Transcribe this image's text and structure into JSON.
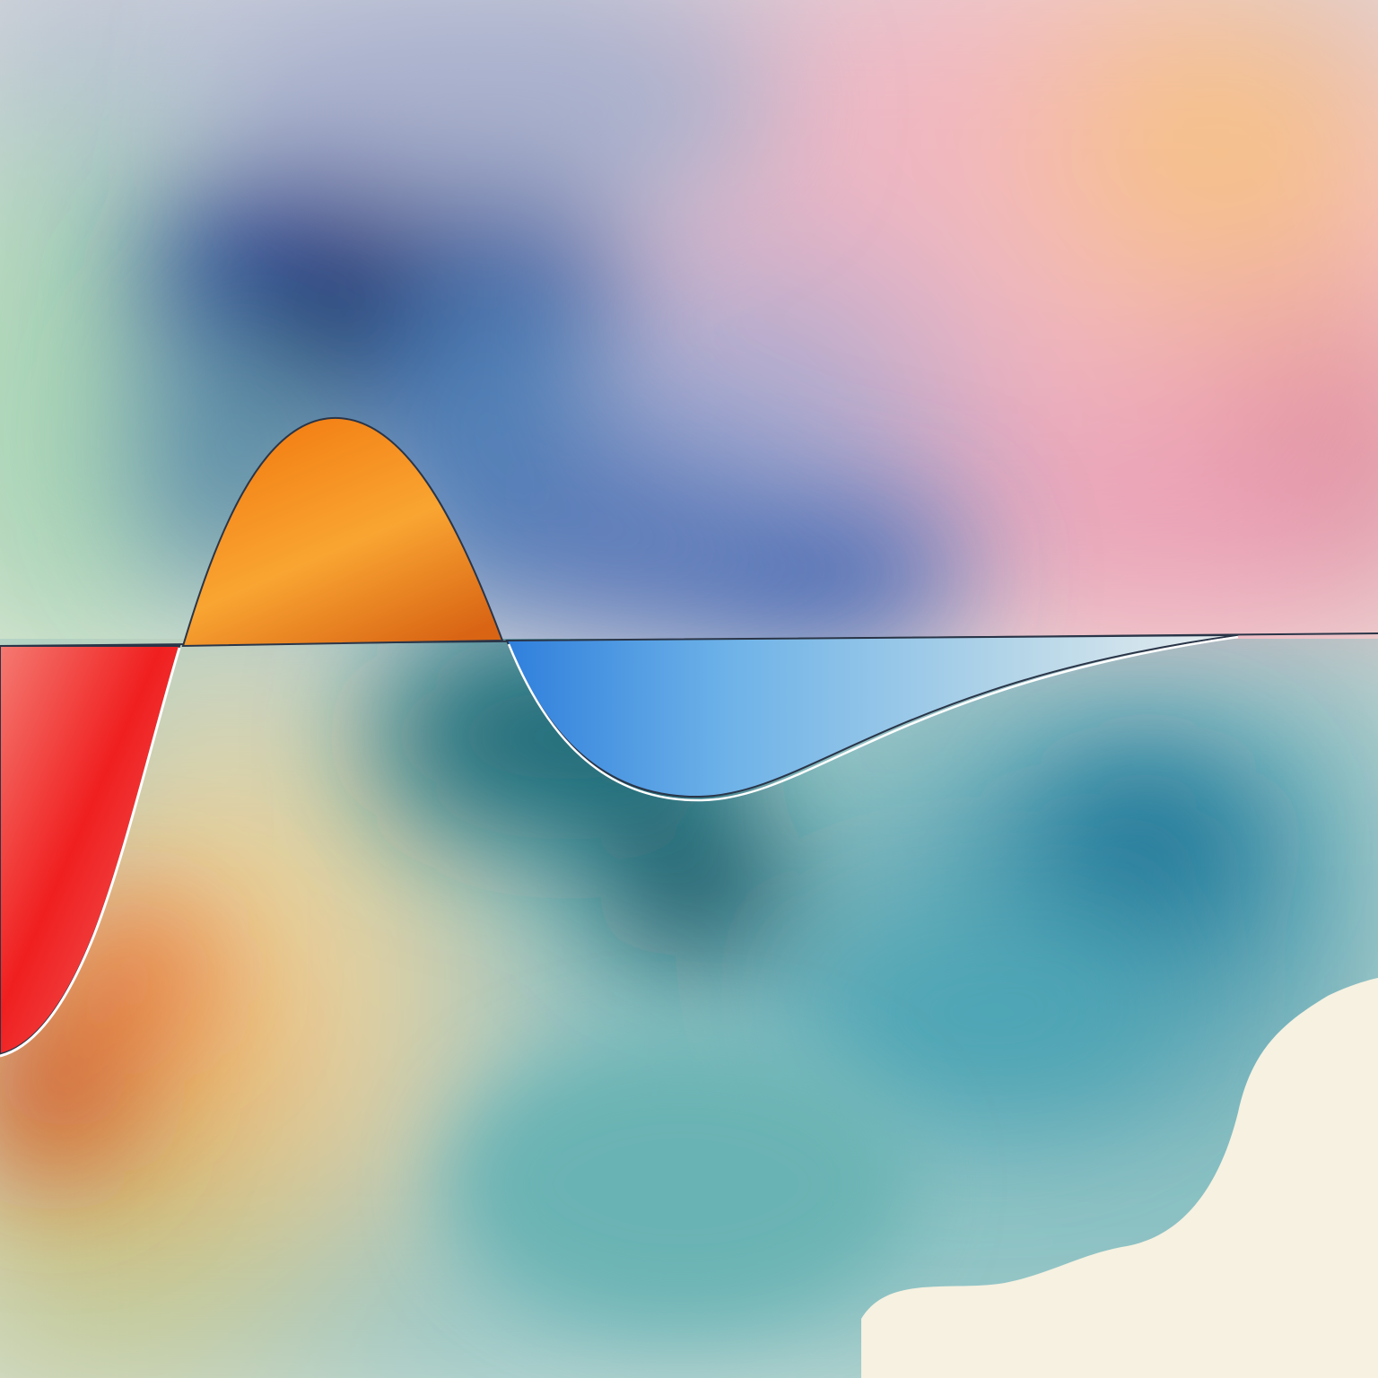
{
  "artwork": {
    "kind": "abstract-watercolor-wave",
    "palette": {
      "paper": "#f5f0e2",
      "deep_blue": "#1b3f8c",
      "navy": "#0d1f5e",
      "periwinkle": "#9aa5c9",
      "pink": "#f2a8b8",
      "crimson": "#b81437",
      "peach": "#f7c88a",
      "teal": "#2a8a9a",
      "deep_teal": "#0f5e6e",
      "mint": "#a8d7d2",
      "sage": "#9ccaa0",
      "olive_yellow": "#d8d59a",
      "orange": "#f07d1a",
      "red": "#f03a3a",
      "sky_blue": "#3a8fe0",
      "outline": "#2a3548"
    },
    "shapes": [
      {
        "name": "red-trough",
        "color": "#f02a2a"
      },
      {
        "name": "orange-crest",
        "color": "#f28a1e"
      },
      {
        "name": "blue-trough",
        "color": "#3f93e2"
      }
    ]
  }
}
